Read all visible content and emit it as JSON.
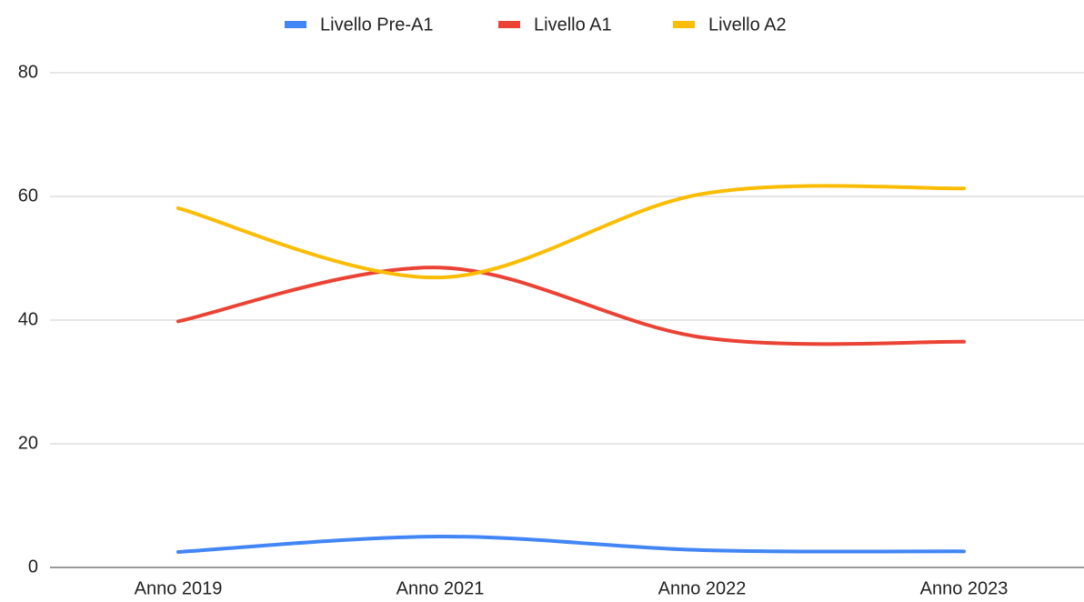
{
  "chart_data": {
    "type": "line",
    "categories": [
      "Anno 2019",
      "Anno 2021",
      "Anno 2022",
      "Anno 2023"
    ],
    "series": [
      {
        "name": "Livello Pre-A1",
        "color": "#4285f4",
        "values": [
          2.5,
          5.0,
          2.8,
          2.6
        ]
      },
      {
        "name": "Livello A1",
        "color": "#ea4335",
        "values": [
          39.8,
          48.5,
          37.2,
          36.5
        ]
      },
      {
        "name": "Livello A2",
        "color": "#fbbc04",
        "values": [
          58.1,
          46.9,
          60.4,
          61.3
        ]
      }
    ],
    "ylim": [
      0,
      80
    ],
    "yticks": [
      0,
      20,
      40,
      60,
      80
    ],
    "grid": true,
    "smooth": true,
    "legend": "top"
  }
}
